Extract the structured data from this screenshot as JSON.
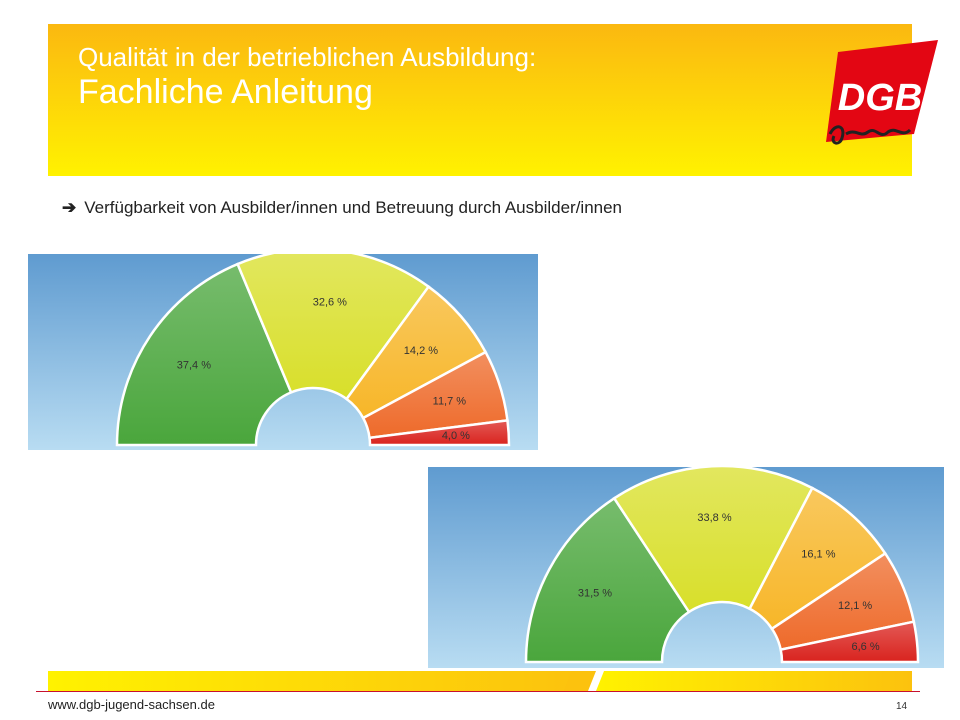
{
  "header": {
    "title_line1": "Qualität in der betrieblichen Ausbildung:",
    "title_line2": "Fachliche Anleitung"
  },
  "logo": {
    "text": "DGB",
    "subtext": "Jugend",
    "color": "#e30613"
  },
  "bullet": {
    "arrow": "➔",
    "text": "Verfügbarkeit von Ausbilder/innen und Betreuung durch Ausbilder/innen"
  },
  "chart_data": [
    {
      "type": "pie",
      "style": "half-donut",
      "values": [
        37.4,
        32.6,
        14.2,
        11.7,
        4.0
      ],
      "labels": [
        "37,4 %",
        "32,6 %",
        "14,2 %",
        "11,7 %",
        "4,0 %"
      ],
      "colors": [
        "#4aa63c",
        "#d8df2a",
        "#f7b628",
        "#ee6a2a",
        "#d9231e"
      ]
    },
    {
      "type": "pie",
      "style": "half-donut",
      "values": [
        31.5,
        33.8,
        16.1,
        12.1,
        6.6
      ],
      "labels": [
        "31,5 %",
        "33,8 %",
        "16,1 %",
        "12,1 %",
        "6,6 %"
      ],
      "colors": [
        "#4aa63c",
        "#d8df2a",
        "#f7b628",
        "#ee6a2a",
        "#d9231e"
      ]
    }
  ],
  "footer": {
    "url": "www.dgb-jugend-sachsen.de",
    "page": "14"
  }
}
